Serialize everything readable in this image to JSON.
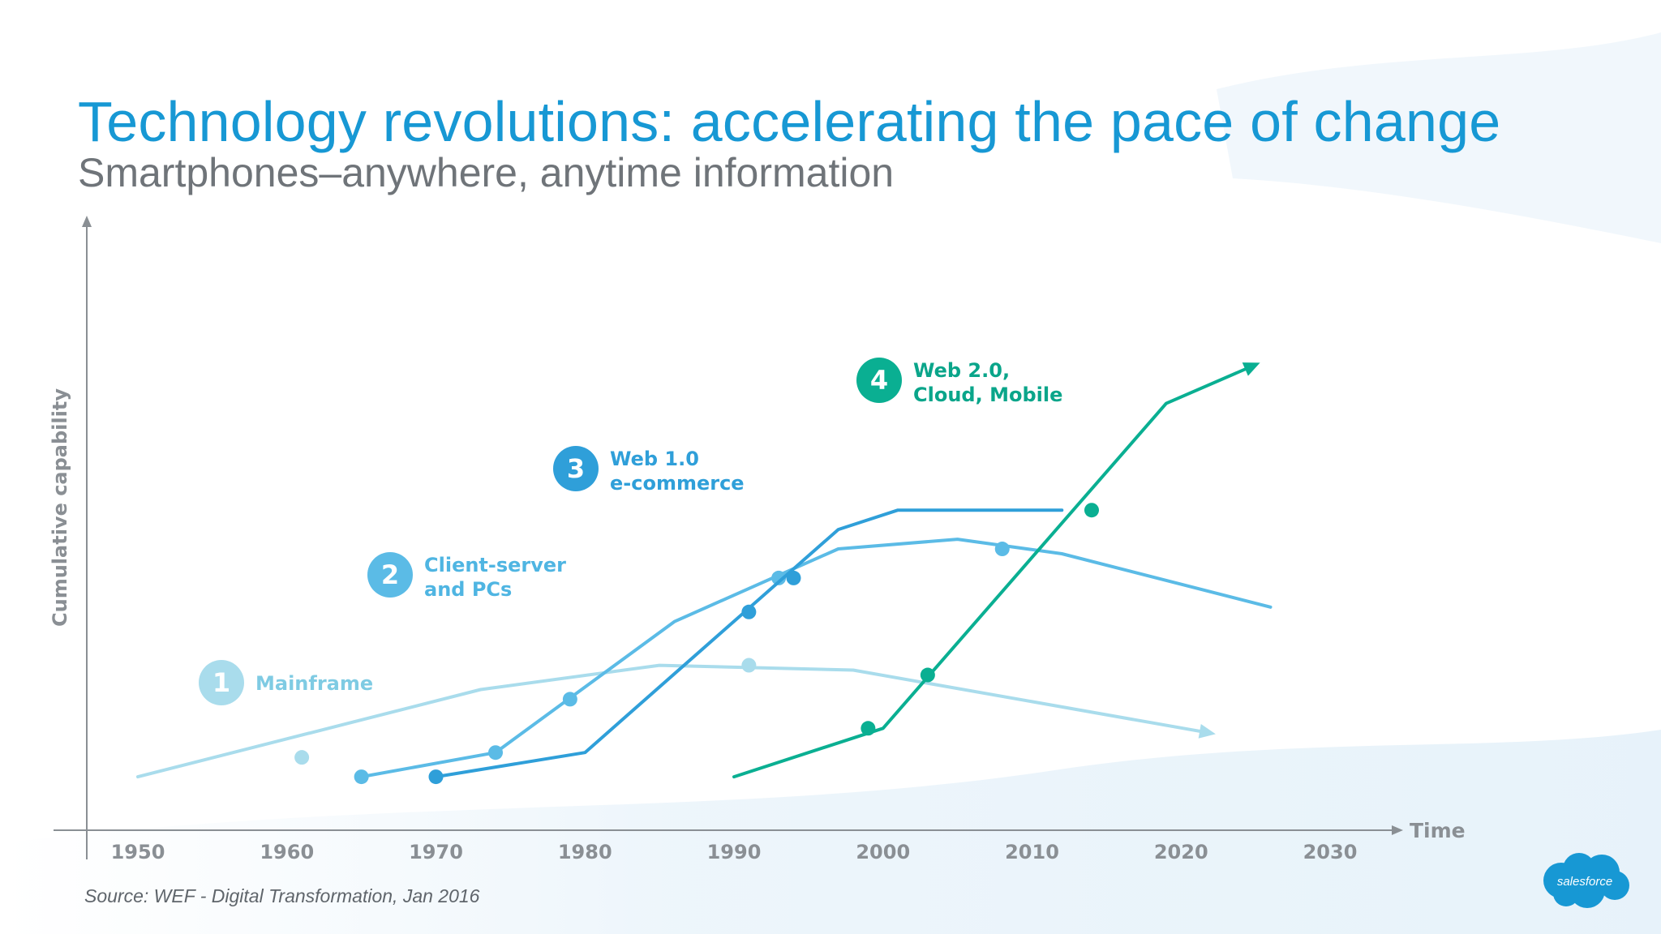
{
  "slide": {
    "title": "Technology revolutions: accelerating the pace of change",
    "subtitle": "Smartphones–anywhere, anytime information",
    "source": "Source: WEF - Digital Transformation, Jan 2016",
    "logo_text": "salesforce"
  },
  "colors": {
    "title": "#1798d4",
    "subtitle": "#6f7479",
    "axis": "#8a8f94",
    "tick_label": "#8a8f94"
  },
  "chart_data": {
    "type": "line",
    "title": "",
    "xlabel": "Time",
    "ylabel": "Cumulative capability",
    "xlim": [
      1947,
      2032
    ],
    "ylim": [
      0,
      100
    ],
    "x_ticks": [
      1950,
      1960,
      1970,
      1980,
      1990,
      2000,
      2010,
      2020,
      2030
    ],
    "grid": false,
    "legend": "inline callouts",
    "series": [
      {
        "name": "Mainframe",
        "number": "1",
        "color": "#a9dcec",
        "label_color": "#7fcbe3",
        "points": [
          [
            1950,
            5
          ],
          [
            1973,
            23
          ],
          [
            1985,
            28
          ],
          [
            1998,
            27
          ],
          [
            2022,
            14
          ]
        ],
        "markers": [
          [
            1961,
            9
          ],
          [
            1991,
            28
          ]
        ],
        "arrow": true
      },
      {
        "name": "Client-server\nand PCs",
        "number": "2",
        "color": "#5bbbe6",
        "label_color": "#4fb5e2",
        "points": [
          [
            1965,
            5
          ],
          [
            1974,
            10
          ],
          [
            1986,
            37
          ],
          [
            1997,
            52
          ],
          [
            2005,
            54
          ],
          [
            2012,
            51
          ],
          [
            2026,
            40
          ]
        ],
        "markers": [
          [
            1965,
            5
          ],
          [
            1974,
            10
          ],
          [
            1979,
            21
          ],
          [
            1993,
            46
          ],
          [
            2008,
            52
          ]
        ],
        "arrow": false
      },
      {
        "name": "Web 1.0\ne-commerce",
        "number": "3",
        "color": "#2f9fd9",
        "label_color": "#2f9fd9",
        "points": [
          [
            1970,
            5
          ],
          [
            1980,
            10
          ],
          [
            1997,
            56
          ],
          [
            2001,
            60
          ],
          [
            2012,
            60
          ]
        ],
        "markers": [
          [
            1970,
            5
          ],
          [
            1991,
            39
          ],
          [
            1994,
            46
          ]
        ],
        "arrow": false
      },
      {
        "name": "Web 2.0,\nCloud, Mobile",
        "number": "4",
        "color": "#0aaf92",
        "label_color": "#0aa58a",
        "points": [
          [
            1990,
            5
          ],
          [
            2000,
            15
          ],
          [
            2019,
            82
          ],
          [
            2025,
            90
          ]
        ],
        "markers": [
          [
            1999,
            15
          ],
          [
            2003,
            26
          ],
          [
            2014,
            60
          ]
        ],
        "arrow": true
      }
    ]
  }
}
